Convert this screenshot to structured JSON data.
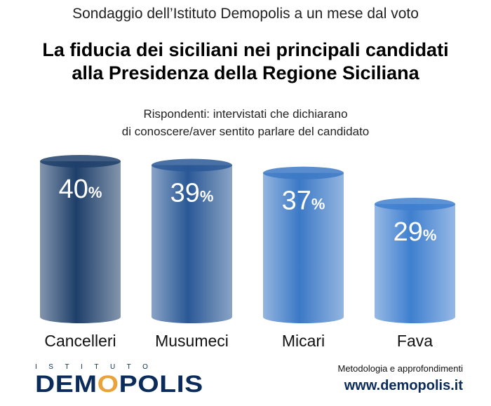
{
  "header": {
    "supertitle": "Sondaggio dell’Istituto Demopolis a un mese dal voto",
    "title_line1": "La fiducia dei siciliani nei principali candidati",
    "title_line2": "alla Presidenza della Regione Siciliana",
    "subtitle_line1": "Rispondenti: intervistati che dichiarano",
    "subtitle_line2": "di conoscere/aver sentito parlare del candidato"
  },
  "chart_data": {
    "type": "bar",
    "categories": [
      "Cancelleri",
      "Musumeci",
      "Micari",
      "Fava"
    ],
    "values": [
      40,
      39,
      37,
      29
    ],
    "value_suffix": "%",
    "ylim": [
      0,
      40
    ],
    "grid": false,
    "legend": "none",
    "colors": [
      "#1e3f6a",
      "#2a5896",
      "#3c79c6",
      "#3f7fcf"
    ]
  },
  "footer": {
    "logo_top": "ISTITUTO",
    "logo_main_left": "DEM",
    "logo_main_accent": "O",
    "logo_main_right": "POLIS",
    "note": "Metodologia e approfondimenti",
    "url": "www.demopolis.it"
  }
}
